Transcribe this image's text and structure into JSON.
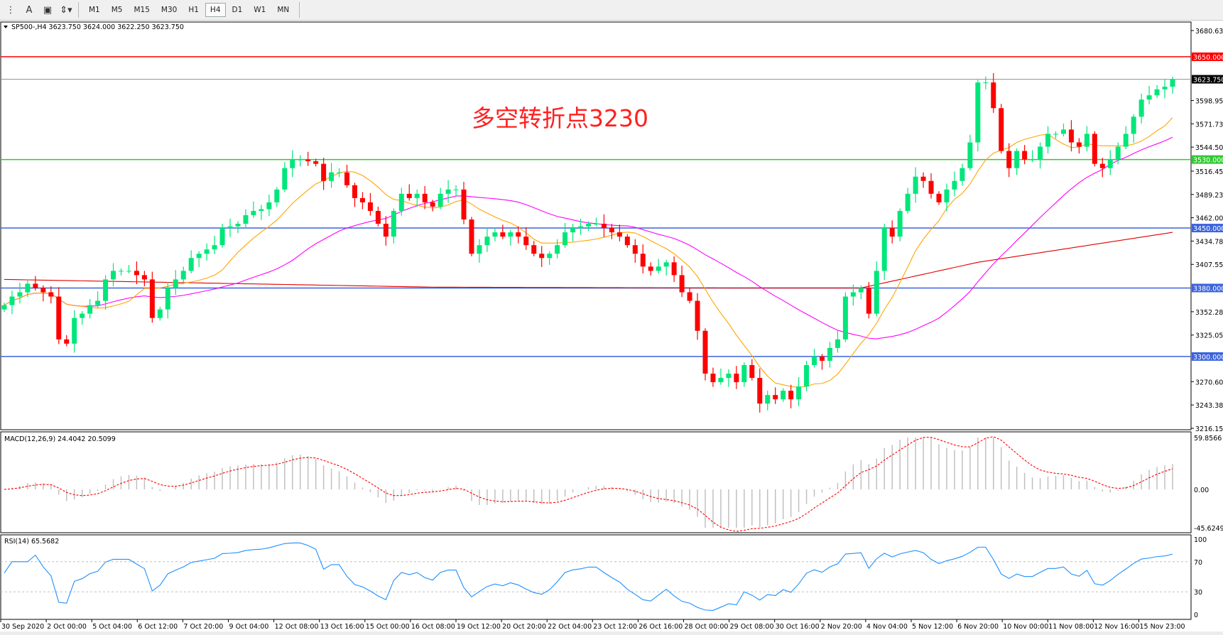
{
  "toolbar": {
    "icons": [
      "period-separator-icon",
      "text-icon",
      "text-label-icon",
      "arrows-icon"
    ],
    "timeframes": [
      "M1",
      "M5",
      "M15",
      "M30",
      "H1",
      "H4",
      "D1",
      "W1",
      "MN"
    ],
    "active_timeframe": "H4"
  },
  "chart_data": {
    "type": "candlestick",
    "symbol_header": "SP500-,H4  3623.750 3624.000 3622.250 3623.750",
    "annotation": "多空转折点3230",
    "annotation_color": "#ff2020",
    "price_axis": {
      "range": [
        3216.155,
        3680.63
      ],
      "ticks": [
        "3680.630",
        "3598.955",
        "3571.730",
        "3544.505",
        "3516.455",
        "3489.230",
        "3462.005",
        "3434.780",
        "3407.555",
        "3352.280",
        "3325.055",
        "3270.605",
        "3243.380",
        "3216.155"
      ],
      "tick_values": [
        3680.63,
        3598.955,
        3571.73,
        3544.505,
        3516.455,
        3489.23,
        3462.005,
        3434.78,
        3407.555,
        3352.28,
        3325.055,
        3270.605,
        3243.38,
        3216.155
      ]
    },
    "current_price": {
      "value": 3623.75,
      "label": "3623.750"
    },
    "levels": [
      {
        "value": 3650,
        "label": "3650.000",
        "color": "#ff0000"
      },
      {
        "value": 3530,
        "label": "3530.000",
        "color": "#32c832"
      },
      {
        "value": 3450,
        "label": "3450.000",
        "color": "#3c64dc"
      },
      {
        "value": 3380,
        "label": "3380.000",
        "color": "#3c64dc"
      },
      {
        "value": 3300,
        "label": "3300.000",
        "color": "#3c64dc"
      }
    ],
    "colors": {
      "bull": "#00e67a",
      "bear": "#ff0000",
      "ma_fast": "#ffa500",
      "ma_mid": "#ff00ff",
      "ma_slow": "#e00000",
      "macd_hist": "#c0c0c0",
      "macd_signal": "#ff0000",
      "rsi": "#1e90ff"
    },
    "closes": [
      3360,
      3370,
      3375,
      3385,
      3380,
      3375,
      3370,
      3320,
      3315,
      3345,
      3350,
      3360,
      3365,
      3390,
      3400,
      3400,
      3400,
      3395,
      3390,
      3345,
      3355,
      3380,
      3390,
      3400,
      3415,
      3420,
      3425,
      3430,
      3450,
      3452,
      3455,
      3465,
      3470,
      3472,
      3480,
      3495,
      3520,
      3530,
      3530,
      3528,
      3525,
      3505,
      3515,
      3515,
      3500,
      3485,
      3480,
      3470,
      3455,
      3440,
      3470,
      3490,
      3485,
      3490,
      3480,
      3475,
      3490,
      3495,
      3495,
      3460,
      3420,
      3430,
      3440,
      3445,
      3440,
      3445,
      3440,
      3430,
      3420,
      3415,
      3420,
      3430,
      3445,
      3450,
      3452,
      3455,
      3455,
      3450,
      3445,
      3440,
      3430,
      3420,
      3405,
      3400,
      3405,
      3410,
      3395,
      3375,
      3365,
      3330,
      3280,
      3270,
      3275,
      3280,
      3270,
      3290,
      3275,
      3245,
      3255,
      3250,
      3260,
      3250,
      3265,
      3290,
      3300,
      3295,
      3310,
      3320,
      3370,
      3375,
      3380,
      3350,
      3400,
      3450,
      3440,
      3470,
      3490,
      3510,
      3505,
      3490,
      3480,
      3495,
      3505,
      3520,
      3550,
      3620,
      3620,
      3590,
      3540,
      3520,
      3540,
      3530,
      3530,
      3545,
      3560,
      3560,
      3565,
      3550,
      3545,
      3560,
      3525,
      3520,
      3530,
      3545,
      3560,
      3580,
      3600,
      3605,
      3612,
      3615,
      3623.75
    ],
    "ma_slow_anchors": [
      [
        0,
        3390
      ],
      [
        55,
        3381
      ],
      [
        95,
        3380
      ],
      [
        110,
        3380
      ],
      [
        125,
        3410
      ],
      [
        150,
        3445
      ]
    ],
    "time_labels": [
      "30 Sep 2020",
      "2 Oct 00:00",
      "5 Oct 04:00",
      "6 Oct 12:00",
      "7 Oct 20:00",
      "9 Oct 04:00",
      "12 Oct 08:00",
      "13 Oct 16:00",
      "15 Oct 00:00",
      "16 Oct 08:00",
      "19 Oct 12:00",
      "20 Oct 20:00",
      "22 Oct 04:00",
      "23 Oct 12:00",
      "26 Oct 16:00",
      "28 Oct 00:00",
      "29 Oct 08:00",
      "30 Oct 16:00",
      "2 Nov 20:00",
      "4 Nov 04:00",
      "5 Nov 12:00",
      "6 Nov 20:00",
      "10 Nov 00:00",
      "11 Nov 08:00",
      "12 Nov 16:00",
      "15 Nov 23:00"
    ],
    "macd": {
      "header": "MACD(12,26,9) 24.4042 20.5099",
      "range": [
        -45.6249,
        59.8566
      ],
      "ticks": [
        "59.8566",
        "0.00",
        "-45.6249"
      ]
    },
    "rsi": {
      "header": "RSI(14) 65.5682",
      "range": [
        0,
        100
      ],
      "levels": [
        30,
        70
      ],
      "ticks": [
        "100",
        "70",
        "30",
        "0"
      ]
    }
  }
}
